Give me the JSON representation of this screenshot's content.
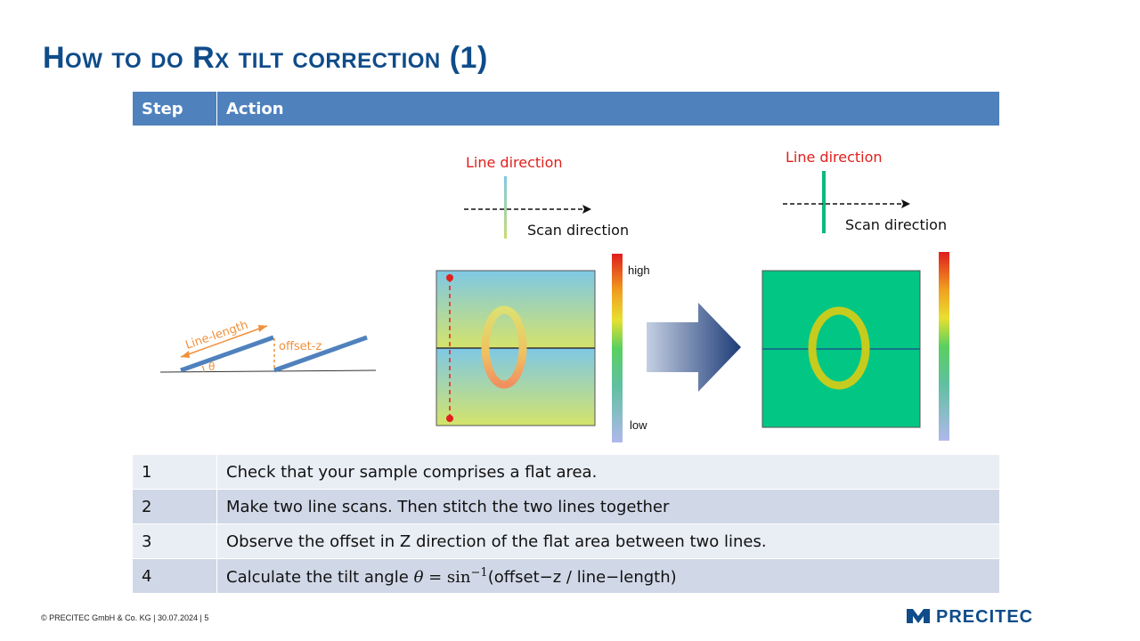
{
  "title": "How to do Rx tilt correction (1)",
  "table": {
    "headers": [
      "Step",
      "Action"
    ],
    "rows": [
      {
        "step": "1",
        "action": "Check that your sample comprises a flat area."
      },
      {
        "step": "2",
        "action": "Make two line scans. Then stitch the two lines together"
      },
      {
        "step": "3",
        "action": "Observe the offset in Z direction of the flat area between two lines."
      },
      {
        "step": "4",
        "action_prefix": "Calculate the tilt angle ",
        "theta": "θ",
        "eq": " = sin",
        "sup": "−1",
        "args": "(offset−z / line−length)"
      }
    ]
  },
  "diagram": {
    "line_length_label": "Line-length",
    "offset_label": "offset-z",
    "theta_label": "θ"
  },
  "panel_left": {
    "line_direction": "Line direction",
    "scan_direction": "Scan direction",
    "scale_high": "high",
    "scale_low": "low"
  },
  "panel_right": {
    "line_direction": "Line direction",
    "scan_direction": "Scan direction"
  },
  "footer": "© PRECITEC  GmbH  & Co. KG | 30.07.2024 | 5",
  "logo": "PRECITEC",
  "colors": {
    "title": "#0f4c8a",
    "header": "#4f81bd",
    "row_light": "#e9edf4",
    "row_dark": "#d0d8e8",
    "line_direction": "#e0201c",
    "diagram": "#4f81bd",
    "annot": "#f0903a"
  }
}
